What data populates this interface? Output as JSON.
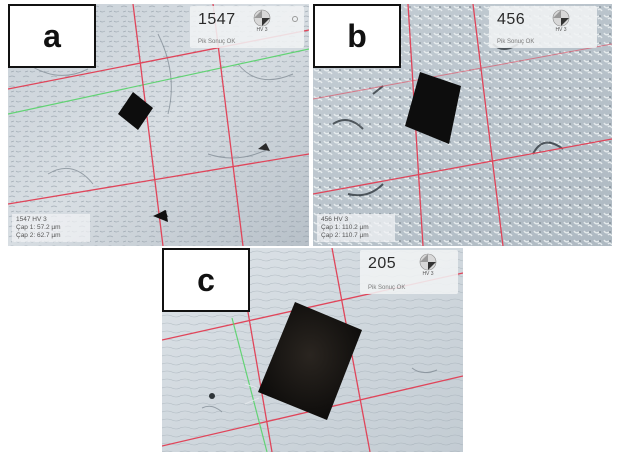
{
  "panels": [
    {
      "id": "a",
      "letter": "a",
      "hardness_value": "1547",
      "method": "HV 3",
      "status": "Pik Sonuç OK",
      "readout": [
        "1547 HV 3",
        "Çap 1: 57.2 µm",
        "Çap 2: 62.7 µm"
      ]
    },
    {
      "id": "b",
      "letter": "b",
      "hardness_value": "456",
      "method": "HV 3",
      "status": "Pik Sonuç OK",
      "readout": [
        "456 HV 3",
        "Çap 1: 110.2 µm",
        "Çap 2: 110.7 µm"
      ]
    },
    {
      "id": "c",
      "letter": "c",
      "hardness_value": "205",
      "method": "HV 3",
      "status": "Pik Sonuç OK"
    }
  ],
  "colors": {
    "crosshair_red": "#e0455a",
    "crosshair_green": "#57d36a",
    "indent": "#0d0d0d"
  },
  "icons": {
    "hud_icon": "pyramid-indenter-icon"
  }
}
